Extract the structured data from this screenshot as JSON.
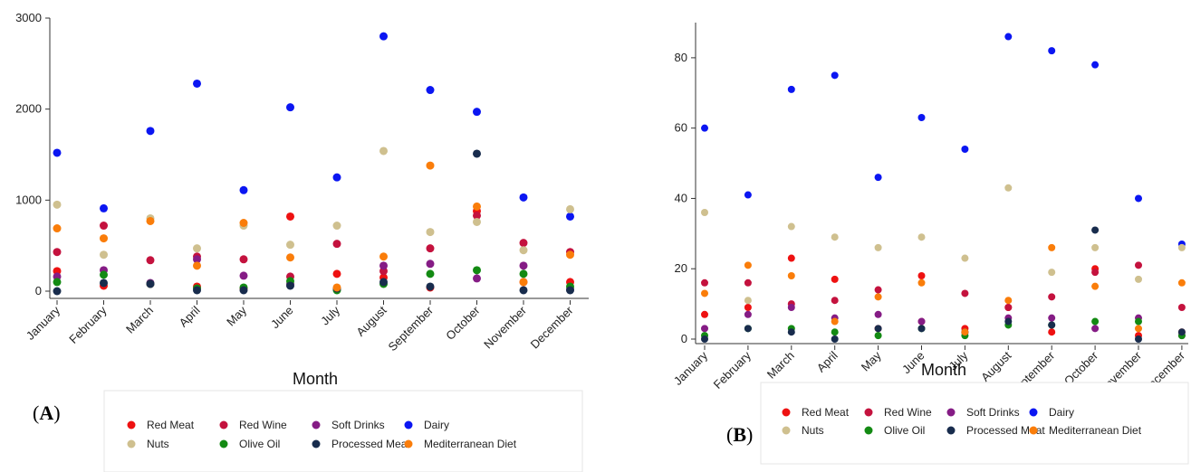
{
  "panel_labels": [
    "A",
    "B"
  ],
  "colors": {
    "Red Meat": "#ee1111",
    "Red Wine": "#c4123e",
    "Soft Drinks": "#851c85",
    "Dairy": "#0b16f2",
    "Nuts": "#cfc08f",
    "Olive Oil": "#138a13",
    "Processed Meat": "#182c4d",
    "Mediterranean Diet": "#fa7d0a"
  },
  "chart_data": [
    {
      "type": "scatter",
      "panel": "A",
      "xlabel": "Month",
      "ylabel": "",
      "ylim": [
        0,
        3000
      ],
      "yticks": [
        0,
        1000,
        2000,
        3000
      ],
      "categories": [
        "January",
        "February",
        "March",
        "April",
        "May",
        "June",
        "July",
        "August",
        "September",
        "October",
        "November",
        "December"
      ],
      "legend": [
        "Red Meat",
        "Red Wine",
        "Soft Drinks",
        "Dairy",
        "Nuts",
        "Olive Oil",
        "Processed Meat",
        "Mediterranean Diet"
      ],
      "series": [
        {
          "name": "Red Meat",
          "values": [
            220,
            60,
            80,
            50,
            30,
            820,
            190,
            150,
            40,
            880,
            100,
            100
          ]
        },
        {
          "name": "Red Wine",
          "values": [
            430,
            720,
            340,
            380,
            350,
            160,
            520,
            220,
            470,
            830,
            530,
            430
          ]
        },
        {
          "name": "Soft Drinks",
          "values": [
            160,
            230,
            90,
            350,
            170,
            80,
            20,
            280,
            300,
            140,
            280,
            20
          ]
        },
        {
          "name": "Dairy",
          "values": [
            1520,
            910,
            1760,
            2280,
            1110,
            2020,
            1250,
            2800,
            2210,
            1970,
            1030,
            820
          ]
        },
        {
          "name": "Nuts",
          "values": [
            950,
            400,
            800,
            470,
            720,
            510,
            720,
            1540,
            650,
            760,
            450,
            900
          ]
        },
        {
          "name": "Olive Oil",
          "values": [
            100,
            180,
            80,
            30,
            40,
            110,
            10,
            80,
            190,
            230,
            190,
            50
          ]
        },
        {
          "name": "Processed Meat",
          "values": [
            0,
            90,
            80,
            10,
            10,
            60,
            30,
            100,
            50,
            1510,
            10,
            10
          ]
        },
        {
          "name": "Mediterranean Diet",
          "values": [
            690,
            580,
            770,
            280,
            750,
            370,
            40,
            380,
            1380,
            930,
            100,
            400
          ]
        }
      ]
    },
    {
      "type": "scatter",
      "panel": "B",
      "xlabel": "Month",
      "ylabel": "",
      "ylim": [
        0,
        90
      ],
      "yticks": [
        0,
        20,
        40,
        60,
        80
      ],
      "categories": [
        "January",
        "February",
        "March",
        "April",
        "May",
        "June",
        "July",
        "August",
        "September",
        "October",
        "November",
        "December"
      ],
      "legend": [
        "Red Meat",
        "Red Wine",
        "Soft Drinks",
        "Dairy",
        "Nuts",
        "Olive Oil",
        "Processed Meat",
        "Mediterranean Diet"
      ],
      "series": [
        {
          "name": "Red Meat",
          "values": [
            7,
            9,
            23,
            17,
            3,
            18,
            3,
            9,
            2,
            20,
            1,
            2
          ]
        },
        {
          "name": "Red Wine",
          "values": [
            16,
            16,
            10,
            11,
            14,
            5,
            13,
            9,
            12,
            19,
            21,
            9
          ]
        },
        {
          "name": "Soft Drinks",
          "values": [
            3,
            7,
            9,
            6,
            7,
            5,
            2,
            6,
            6,
            3,
            6,
            1
          ]
        },
        {
          "name": "Dairy",
          "values": [
            60,
            41,
            71,
            75,
            46,
            63,
            54,
            86,
            82,
            78,
            40,
            27
          ]
        },
        {
          "name": "Nuts",
          "values": [
            36,
            11,
            32,
            29,
            26,
            29,
            23,
            43,
            19,
            26,
            17,
            26
          ]
        },
        {
          "name": "Olive Oil",
          "values": [
            1,
            3,
            3,
            2,
            1,
            3,
            1,
            4,
            4,
            5,
            5,
            1
          ]
        },
        {
          "name": "Processed Meat",
          "values": [
            0,
            3,
            2,
            0,
            3,
            3,
            2,
            5,
            4,
            31,
            0,
            2
          ]
        },
        {
          "name": "Mediterranean Diet",
          "values": [
            13,
            21,
            18,
            5,
            12,
            16,
            2,
            11,
            26,
            15,
            3,
            16
          ]
        }
      ]
    }
  ]
}
